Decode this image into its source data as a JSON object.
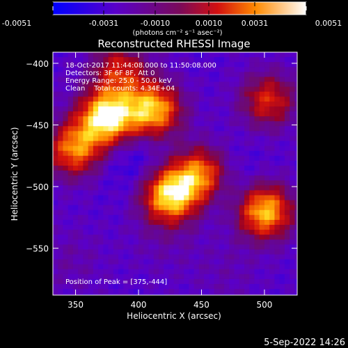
{
  "colorbar": {
    "ticks": [
      "-0.0051",
      "-0.0031",
      "-0.0010",
      "0.0010",
      "0.0031",
      "0.0051"
    ],
    "unit_label": "(photons cm⁻² s⁻¹ asec⁻²)"
  },
  "chart_data": {
    "type": "heatmap",
    "title": "Reconstructed RHESSI Image",
    "xlabel": "Heliocentric X (arcsec)",
    "ylabel": "Heliocentric Y (arcsec)",
    "xlim": [
      332,
      526
    ],
    "ylim": [
      -588,
      -391
    ],
    "x_ticks": [
      350,
      400,
      450,
      500
    ],
    "y_ticks": [
      -400,
      -450,
      -500,
      -550
    ],
    "value_range": [
      -0.0051,
      0.0051
    ],
    "sources": [
      {
        "x": 375,
        "y": -444,
        "value": 0.0051
      },
      {
        "x": 412,
        "y": -438,
        "value": 0.0038
      },
      {
        "x": 349,
        "y": -470,
        "value": 0.0028
      },
      {
        "x": 425,
        "y": -507,
        "value": 0.0044
      },
      {
        "x": 450,
        "y": -490,
        "value": 0.003
      },
      {
        "x": 500,
        "y": -520,
        "value": 0.004
      },
      {
        "x": 503,
        "y": -430,
        "value": 0.0015
      },
      {
        "x": 385,
        "y": -405,
        "value": 0.0012
      },
      {
        "x": 395,
        "y": -476,
        "value": -0.004
      },
      {
        "x": 470,
        "y": -498,
        "value": -0.004
      },
      {
        "x": 420,
        "y": -545,
        "value": -0.002
      },
      {
        "x": 345,
        "y": -560,
        "value": -0.0018
      },
      {
        "x": 470,
        "y": -570,
        "value": -0.002
      }
    ],
    "annotations": [
      "18-Oct-2017 11:44:08.000 to 11:50:08.000",
      "Detectors: 3F 6F 8F, Att 0",
      "Energy Range: 25.0 - 50.0 keV",
      "Clean    Total counts: 4.34E+04",
      "Position of Peak = [375,-444]"
    ]
  },
  "timestamp": "5-Sep-2022 14:26"
}
